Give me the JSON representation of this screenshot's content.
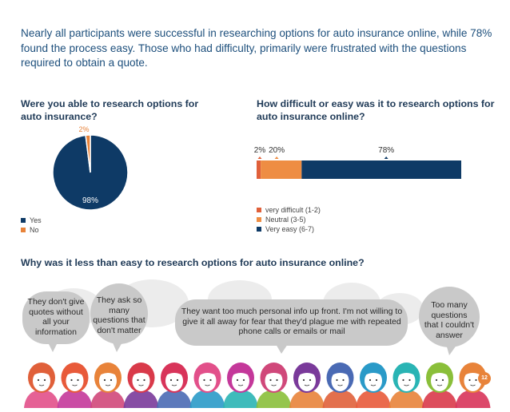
{
  "intro": "Nearly all participants were successful in researching options for auto insurance online, while 78% found the process easy. Those who had difficulty, primarily were frustrated with the questions required to obtain a quote.",
  "pie_title": "Were you able to research options for auto insurance?",
  "bar_title": "How difficult or easy was it to research options for auto insurance online?",
  "bottom_title": "Why was it less than easy to research options for auto insurance online?",
  "quotes": [
    "They don't give quotes without all your information",
    "They ask so many questions that don't matter",
    "They want too much personal info up front. I'm not willing to give it all away for fear that they'd plague me with repeated phone calls or emails or mail",
    "Too many questions that I couldn't answer"
  ],
  "page_number": "12",
  "colors": {
    "navy": "#0e3a66",
    "orange": "#e8833a",
    "red_orange": "#e0603a",
    "bubble": "#c9c9c9",
    "bubble_light": "#ececec"
  },
  "chart_data": [
    {
      "type": "pie",
      "title": "Were you able to research options for auto insurance?",
      "labels": [
        "Yes",
        "No"
      ],
      "values": [
        98,
        2
      ],
      "data_labels": [
        "98%",
        "2%"
      ],
      "colors": [
        "#0e3a66",
        "#e8833a"
      ],
      "legend": "bottom-left"
    },
    {
      "type": "bar",
      "stacked": true,
      "orientation": "horizontal",
      "title": "How difficult or easy was it to research options for auto insurance online?",
      "series": [
        {
          "name": "very difficult (1-2)",
          "values": [
            2
          ],
          "label": "2%",
          "color": "#e0603a"
        },
        {
          "name": "Neutral (3-5)",
          "values": [
            20
          ],
          "label": "20%",
          "color": "#ee8d43"
        },
        {
          "name": "Very easy (6-7)",
          "values": [
            78
          ],
          "label": "78%",
          "color": "#0e3a66"
        }
      ],
      "xlim": [
        0,
        100
      ],
      "legend": "bottom-left"
    }
  ]
}
